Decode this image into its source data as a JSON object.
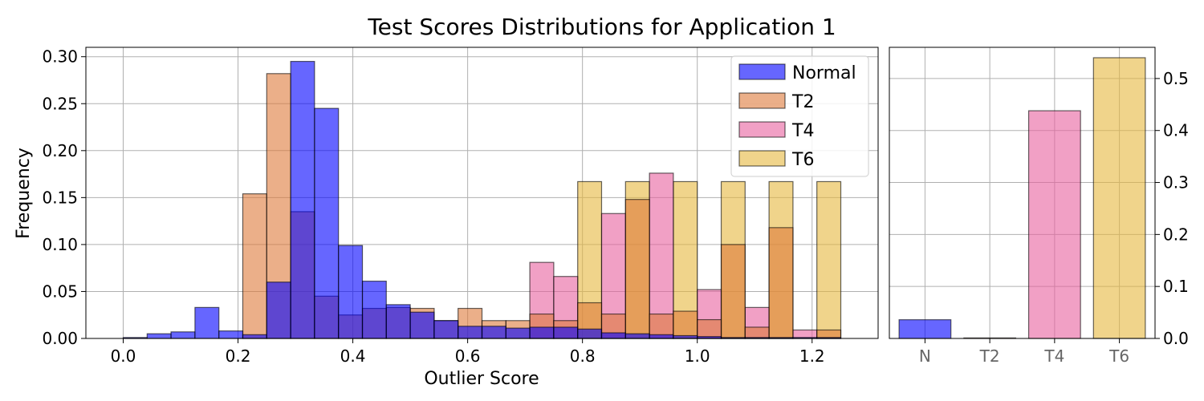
{
  "figure_title": "Test Scores Distributions for Application 1",
  "colors": {
    "Normal": "#0000ff",
    "T2": "#dd7a3a",
    "T4": "#e8609e",
    "T6": "#e6b83e"
  },
  "chart_data": [
    {
      "type": "bar",
      "subtype": "histogram",
      "xlabel": "Outlier Score",
      "ylabel": "Frequency",
      "xlim": [
        -0.065,
        1.315
      ],
      "ylim": [
        0,
        0.31
      ],
      "xticks": [
        "0.0",
        "0.2",
        "0.4",
        "0.6",
        "0.8",
        "1.0",
        "1.2"
      ],
      "xtick_values": [
        0.0,
        0.2,
        0.4,
        0.6,
        0.8,
        1.0,
        1.2
      ],
      "yticks": [
        "0.00",
        "0.05",
        "0.10",
        "0.15",
        "0.20",
        "0.25",
        "0.30"
      ],
      "ytick_values": [
        0.0,
        0.05,
        0.1,
        0.15,
        0.2,
        0.25,
        0.3
      ],
      "grid": true,
      "legend_position": "top-right",
      "bin_edges": [
        0.0,
        0.0417,
        0.0833,
        0.125,
        0.1667,
        0.2083,
        0.25,
        0.2917,
        0.3333,
        0.375,
        0.4167,
        0.4583,
        0.5,
        0.5417,
        0.5833,
        0.625,
        0.6667,
        0.7083,
        0.75,
        0.7917,
        0.8333,
        0.875,
        0.9167,
        0.9583,
        1.0,
        1.0417,
        1.0833,
        1.125,
        1.1667,
        1.2083,
        1.25
      ],
      "series": [
        {
          "name": "T6",
          "values": [
            0,
            0,
            0,
            0,
            0,
            0,
            0,
            0,
            0,
            0,
            0,
            0,
            0,
            0,
            0,
            0,
            0,
            0,
            0,
            0.167,
            0,
            0.167,
            0,
            0.167,
            0,
            0.167,
            0,
            0.167,
            0,
            0.167
          ]
        },
        {
          "name": "T4",
          "values": [
            0,
            0,
            0,
            0,
            0,
            0,
            0,
            0,
            0,
            0,
            0,
            0,
            0,
            0,
            0,
            0,
            0,
            0.081,
            0.066,
            0,
            0.133,
            0,
            0.176,
            0,
            0.052,
            0,
            0.033,
            0,
            0.009,
            0
          ]
        },
        {
          "name": "T2",
          "values": [
            0,
            0,
            0,
            0,
            0,
            0.154,
            0.282,
            0.135,
            0.045,
            0.025,
            0.032,
            0.033,
            0.032,
            0.019,
            0.032,
            0.019,
            0.019,
            0.026,
            0.019,
            0.038,
            0.026,
            0.148,
            0.026,
            0.029,
            0.02,
            0.1,
            0.012,
            0.118,
            0,
            0.009
          ]
        },
        {
          "name": "Normal",
          "values": [
            0.001,
            0.005,
            0.007,
            0.033,
            0.008,
            0.004,
            0.06,
            0.295,
            0.245,
            0.099,
            0.061,
            0.036,
            0.028,
            0.019,
            0.013,
            0.013,
            0.011,
            0.012,
            0.012,
            0.01,
            0.006,
            0.005,
            0.004,
            0.003,
            0.002,
            0.001,
            0.001,
            0.001,
            0.001,
            0.001
          ]
        }
      ]
    },
    {
      "type": "bar",
      "categories": [
        "N",
        "T2",
        "T4",
        "T6"
      ],
      "values": [
        0.036,
        0.001,
        0.438,
        0.54
      ],
      "ylim": [
        0,
        0.56
      ],
      "yticks": [
        "0.0",
        "0.1",
        "0.2",
        "0.3",
        "0.4",
        "0.5"
      ],
      "ytick_values": [
        0.0,
        0.1,
        0.2,
        0.3,
        0.4,
        0.5
      ],
      "yaxis_side": "right",
      "grid": true
    }
  ]
}
